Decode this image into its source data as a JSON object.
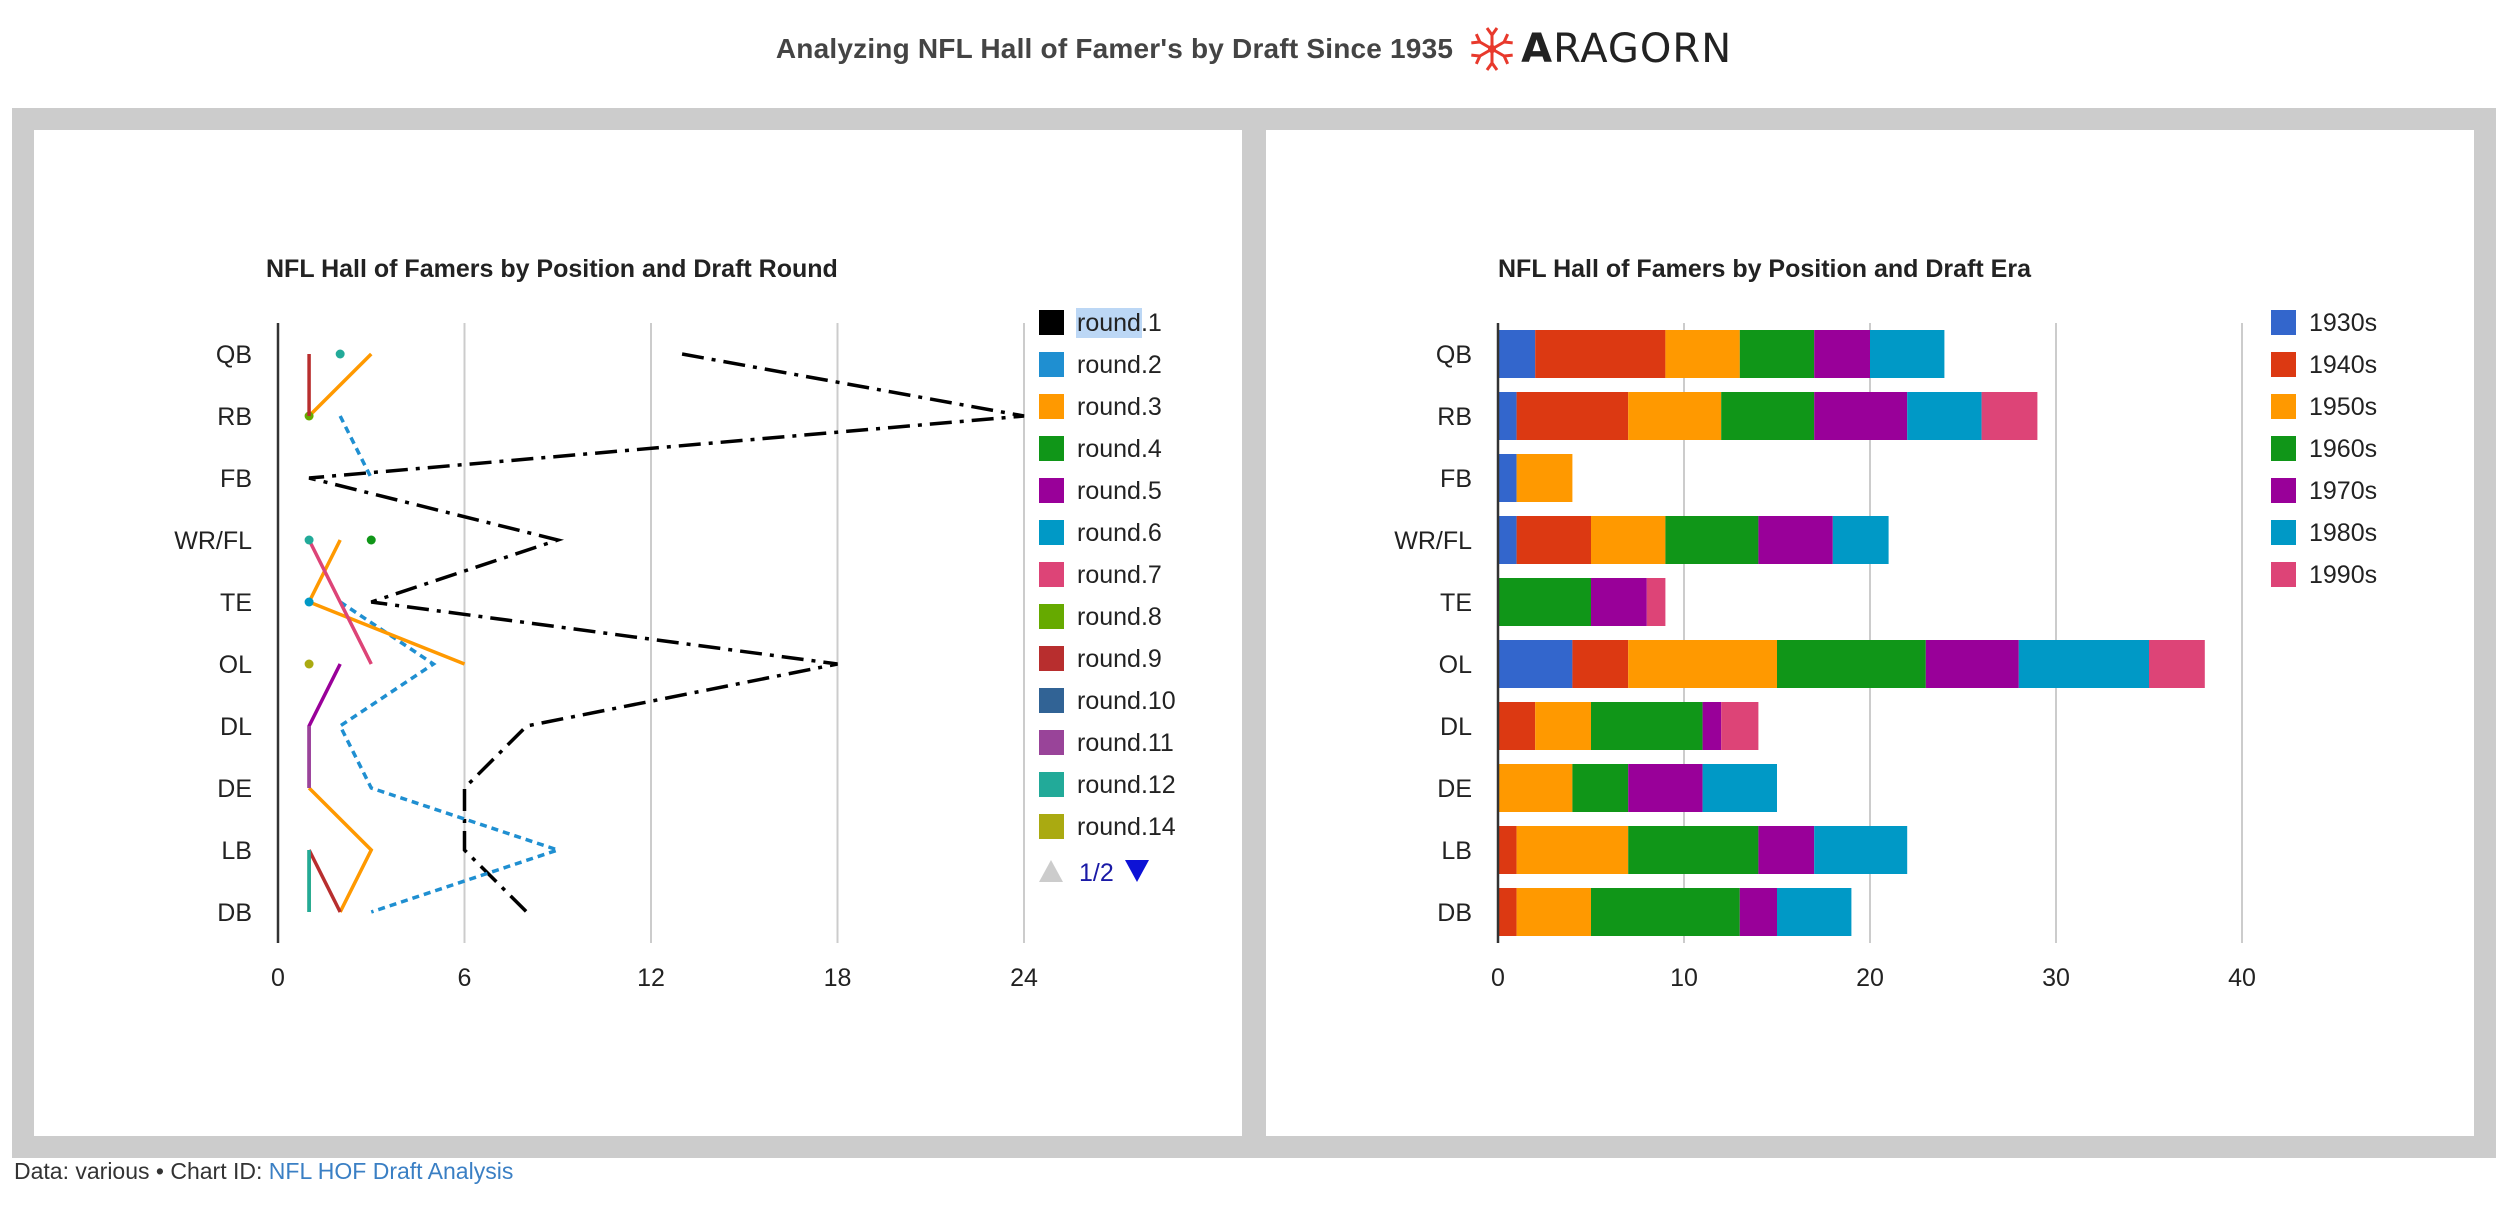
{
  "header": {
    "title": "Analyzing NFL Hall of Famer's by Draft Since 1935",
    "logo_text": "RAGORN",
    "logo_icon": "aragorn-asterisk-icon"
  },
  "footer": {
    "data_label": "Data: various",
    "separator": " • ",
    "chart_id_label": "Chart ID:",
    "chart_id_link": "NFL HOF Draft Analysis"
  },
  "chart_data": [
    {
      "type": "line",
      "title": "NFL Hall of Famers by Position and Draft Round",
      "orientation": "horizontal",
      "categories": [
        "QB",
        "RB",
        "FB",
        "WR/FL",
        "TE",
        "OL",
        "DL",
        "DE",
        "LB",
        "DB"
      ],
      "xticks": [
        0,
        6,
        12,
        18,
        24
      ],
      "xlim": [
        0,
        24
      ],
      "grid": true,
      "legend_position": "right",
      "legend_page": "1/2",
      "legend_highlight": "round",
      "series": [
        {
          "name": "round.1",
          "color": "#000000",
          "dash": "dashdot",
          "values": [
            13,
            24,
            1,
            9,
            3,
            18,
            8,
            6,
            6,
            8
          ]
        },
        {
          "name": "round.2",
          "color": "#1f8fd1",
          "dash": "dotted",
          "values": [
            null,
            2,
            3,
            null,
            2,
            5,
            2,
            3,
            9,
            3
          ]
        },
        {
          "name": "round.3",
          "color": "#ff9900",
          "dash": "solid",
          "values": [
            3,
            1,
            null,
            2,
            1,
            6,
            null,
            1,
            3,
            2
          ]
        },
        {
          "name": "round.4",
          "color": "#109618",
          "dash": "solid",
          "values": [
            null,
            null,
            null,
            3,
            null,
            null,
            null,
            null,
            1,
            1
          ]
        },
        {
          "name": "round.5",
          "color": "#990099",
          "dash": "solid",
          "values": [
            null,
            null,
            null,
            null,
            null,
            2,
            1,
            1,
            null,
            null
          ]
        },
        {
          "name": "round.6",
          "color": "#0099c6",
          "dash": "solid",
          "values": [
            null,
            null,
            null,
            null,
            1,
            null,
            null,
            null,
            null,
            null
          ]
        },
        {
          "name": "round.7",
          "color": "#dd4477",
          "dash": "solid",
          "values": [
            null,
            null,
            null,
            1,
            2,
            3,
            null,
            null,
            null,
            null
          ]
        },
        {
          "name": "round.8",
          "color": "#66aa00",
          "dash": "solid",
          "values": [
            null,
            1,
            null,
            null,
            null,
            null,
            null,
            null,
            null,
            null
          ]
        },
        {
          "name": "round.9",
          "color": "#b82e2e",
          "dash": "solid",
          "values": [
            1,
            1,
            null,
            null,
            null,
            null,
            null,
            null,
            1,
            2
          ]
        },
        {
          "name": "round.10",
          "color": "#316395",
          "dash": "solid",
          "values": [
            null,
            null,
            null,
            null,
            null,
            null,
            null,
            null,
            null,
            null
          ]
        },
        {
          "name": "round.11",
          "color": "#994499",
          "dash": "solid",
          "values": [
            null,
            null,
            null,
            null,
            null,
            null,
            1,
            1,
            null,
            null
          ]
        },
        {
          "name": "round.12",
          "color": "#22aa99",
          "dash": "solid",
          "values": [
            2,
            null,
            null,
            1,
            null,
            null,
            null,
            null,
            1,
            1
          ]
        },
        {
          "name": "round.14",
          "color": "#aaaa11",
          "dash": "solid",
          "values": [
            null,
            null,
            null,
            null,
            null,
            1,
            null,
            null,
            null,
            null
          ]
        }
      ]
    },
    {
      "type": "bar",
      "stacked": true,
      "orientation": "horizontal",
      "title": "NFL Hall of Famers by Position and Draft Era",
      "categories": [
        "QB",
        "RB",
        "FB",
        "WR/FL",
        "TE",
        "OL",
        "DL",
        "DE",
        "LB",
        "DB"
      ],
      "xticks": [
        0,
        10,
        20,
        30,
        40
      ],
      "xlim": [
        0,
        40
      ],
      "grid": true,
      "legend_position": "right",
      "series": [
        {
          "name": "1930s",
          "color": "#3366cc",
          "values": [
            2,
            1,
            1,
            1,
            0,
            4,
            0,
            0,
            0,
            0
          ]
        },
        {
          "name": "1940s",
          "color": "#dc3912",
          "values": [
            7,
            6,
            0,
            4,
            0,
            3,
            2,
            0,
            1,
            1
          ]
        },
        {
          "name": "1950s",
          "color": "#ff9900",
          "values": [
            4,
            5,
            3,
            4,
            0,
            8,
            3,
            4,
            6,
            4
          ]
        },
        {
          "name": "1960s",
          "color": "#109618",
          "values": [
            4,
            5,
            0,
            5,
            5,
            8,
            6,
            3,
            7,
            8
          ]
        },
        {
          "name": "1970s",
          "color": "#990099",
          "values": [
            3,
            5,
            0,
            4,
            3,
            5,
            1,
            4,
            3,
            2
          ]
        },
        {
          "name": "1980s",
          "color": "#0099c6",
          "values": [
            4,
            4,
            0,
            3,
            0,
            7,
            0,
            4,
            5,
            4
          ]
        },
        {
          "name": "1990s",
          "color": "#dd4477",
          "values": [
            0,
            3,
            0,
            0,
            1,
            3,
            2,
            0,
            0,
            0
          ]
        }
      ]
    }
  ]
}
